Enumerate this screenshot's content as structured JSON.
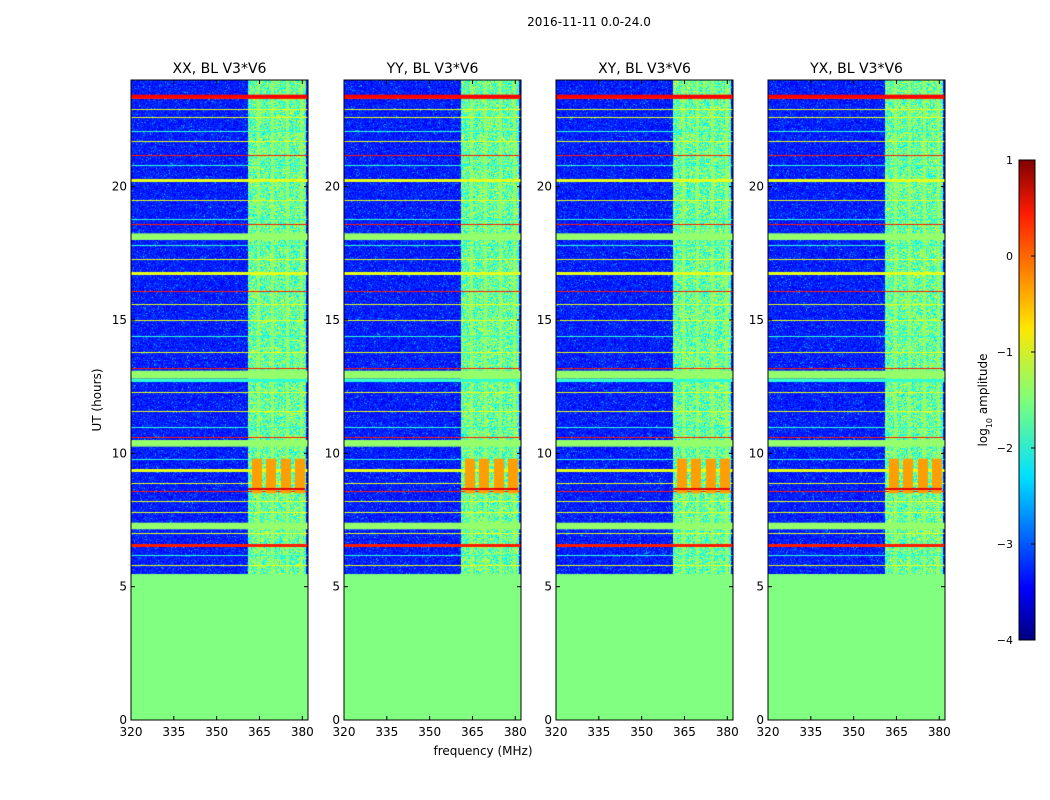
{
  "figure_title": "2016-11-11 0.0-24.0",
  "chart_data": {
    "type": "heatmap",
    "shared": {
      "xlabel": "frequency (MHz)",
      "ylabel": "UT (hours)",
      "xlim": [
        320,
        382
      ],
      "ylim": [
        0,
        24
      ],
      "xticks": [
        320,
        335,
        350,
        365,
        380
      ],
      "yticks": [
        0,
        5,
        10,
        15,
        20
      ],
      "no_data_below_hours": 5.5,
      "rfi_band_mhz": [
        361,
        381
      ],
      "rfi_channels_mhz": [
        364.5,
        369.5,
        374.5,
        379.5
      ]
    },
    "panels": [
      {
        "title": "XX, BL V3*V6",
        "polarization": "XX"
      },
      {
        "title": "YY, BL V3*V6",
        "polarization": "YY"
      },
      {
        "title": "XY, BL V3*V6",
        "polarization": "XY"
      },
      {
        "title": "YX, BL V3*V6",
        "polarization": "YX"
      }
    ],
    "colorbar": {
      "label": "log10 amplitude",
      "label_main": "log",
      "label_sub": "10",
      "label_rest": " amplitude",
      "colormap": "jet",
      "range": [
        -4,
        1
      ],
      "ticks": [
        1,
        0,
        -1,
        -2,
        -3,
        -4
      ],
      "ticklabels": [
        "1",
        "0",
        "−1",
        "−2",
        "−3",
        "−4"
      ]
    }
  }
}
